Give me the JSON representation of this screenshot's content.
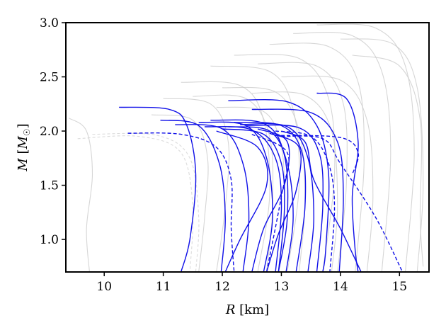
{
  "chart_data": {
    "type": "line",
    "xlabel": "R [km]",
    "ylabel": "M [M☉]",
    "xlim": [
      9.35,
      15.5
    ],
    "ylim": [
      0.7,
      3.0
    ],
    "x_ticks": [
      "10",
      "11",
      "12",
      "13",
      "14",
      "15"
    ],
    "y_ticks": [
      "1.0",
      "1.5",
      "2.0",
      "2.5",
      "3.0"
    ],
    "grid": false,
    "colors": {
      "highlight": "#1010e8",
      "background": "#c8c8c8",
      "background_dashed": "#d0d0d0",
      "axes": "#000000"
    },
    "series": [
      {
        "style": "solid",
        "color": "highlight",
        "points": [
          [
            10.25,
            2.22
          ],
          [
            11.1,
            2.2
          ],
          [
            11.4,
            2.05
          ],
          [
            11.55,
            1.6
          ],
          [
            11.45,
            1.0
          ],
          [
            11.3,
            0.7
          ]
        ]
      },
      {
        "style": "solid",
        "color": "highlight",
        "points": [
          [
            10.95,
            2.1
          ],
          [
            11.6,
            2.05
          ],
          [
            11.95,
            1.7
          ],
          [
            12.05,
            1.2
          ],
          [
            11.98,
            0.7
          ]
        ]
      },
      {
        "style": "solid",
        "color": "highlight",
        "points": [
          [
            11.2,
            2.06
          ],
          [
            12.0,
            2.02
          ],
          [
            12.35,
            1.7
          ],
          [
            12.45,
            1.2
          ],
          [
            12.35,
            0.7
          ]
        ]
      },
      {
        "style": "solid",
        "color": "highlight",
        "points": [
          [
            11.6,
            2.08
          ],
          [
            12.4,
            2.05
          ],
          [
            12.75,
            1.75
          ],
          [
            12.85,
            1.2
          ],
          [
            12.7,
            0.7
          ]
        ]
      },
      {
        "style": "solid",
        "color": "highlight",
        "points": [
          [
            11.8,
            2.1
          ],
          [
            12.7,
            2.07
          ],
          [
            13.05,
            1.78
          ],
          [
            13.1,
            1.2
          ],
          [
            12.95,
            0.7
          ]
        ]
      },
      {
        "style": "solid",
        "color": "highlight",
        "points": [
          [
            12.1,
            2.04
          ],
          [
            12.8,
            2.0
          ],
          [
            13.1,
            1.7
          ],
          [
            13.2,
            1.2
          ],
          [
            13.08,
            0.7
          ]
        ]
      },
      {
        "style": "solid",
        "color": "highlight",
        "points": [
          [
            12.2,
            2.08
          ],
          [
            13.0,
            2.05
          ],
          [
            13.35,
            1.8
          ],
          [
            13.4,
            1.3
          ],
          [
            13.25,
            0.7
          ]
        ]
      },
      {
        "style": "solid",
        "color": "highlight",
        "points": [
          [
            12.3,
            2.06
          ],
          [
            13.1,
            2.04
          ],
          [
            13.45,
            1.75
          ],
          [
            13.55,
            1.2
          ],
          [
            13.45,
            0.7
          ]
        ]
      },
      {
        "style": "solid",
        "color": "highlight",
        "points": [
          [
            12.4,
            2.05
          ],
          [
            13.3,
            2.03
          ],
          [
            13.65,
            1.78
          ],
          [
            13.7,
            1.3
          ],
          [
            13.6,
            0.7
          ]
        ]
      },
      {
        "style": "solid",
        "color": "highlight",
        "points": [
          [
            12.1,
            2.28
          ],
          [
            13.1,
            2.27
          ],
          [
            13.6,
            2.05
          ],
          [
            13.8,
            1.6
          ],
          [
            13.75,
            0.9
          ],
          [
            13.7,
            0.7
          ]
        ]
      },
      {
        "style": "solid",
        "color": "highlight",
        "points": [
          [
            12.5,
            2.2
          ],
          [
            13.5,
            2.17
          ],
          [
            13.95,
            1.9
          ],
          [
            14.05,
            1.4
          ],
          [
            13.98,
            0.7
          ]
        ]
      },
      {
        "style": "solid",
        "color": "highlight",
        "points": [
          [
            13.6,
            2.35
          ],
          [
            14.1,
            2.3
          ],
          [
            14.3,
            1.9
          ],
          [
            14.2,
            1.4
          ],
          [
            14.25,
            0.9
          ],
          [
            14.3,
            0.7
          ]
        ]
      },
      {
        "style": "solid",
        "color": "highlight",
        "points": [
          [
            12.6,
            2.02
          ],
          [
            13.1,
            1.9
          ],
          [
            13.05,
            1.5
          ],
          [
            12.7,
            1.1
          ],
          [
            12.5,
            0.7
          ]
        ]
      },
      {
        "style": "solid",
        "color": "highlight",
        "points": [
          [
            11.9,
            2.0
          ],
          [
            12.6,
            1.85
          ],
          [
            12.75,
            1.5
          ],
          [
            12.3,
            1.0
          ],
          [
            12.05,
            0.7
          ]
        ]
      },
      {
        "style": "solid",
        "color": "highlight",
        "points": [
          [
            12.8,
            1.98
          ],
          [
            13.3,
            1.85
          ],
          [
            13.25,
            1.45
          ],
          [
            12.95,
            1.05
          ],
          [
            12.75,
            0.7
          ]
        ]
      },
      {
        "style": "solid",
        "color": "highlight",
        "points": [
          [
            13.0,
            2.0
          ],
          [
            13.4,
            1.9
          ],
          [
            13.55,
            1.55
          ],
          [
            14.0,
            1.1
          ],
          [
            14.35,
            0.7
          ]
        ]
      },
      {
        "style": "solid",
        "color": "highlight",
        "points": [
          [
            12.0,
            2.02
          ],
          [
            12.7,
            1.97
          ],
          [
            13.0,
            1.7
          ],
          [
            13.05,
            1.25
          ],
          [
            12.95,
            0.7
          ]
        ]
      },
      {
        "style": "solid",
        "color": "highlight",
        "points": [
          [
            11.7,
            2.04
          ],
          [
            12.5,
            2.01
          ],
          [
            12.9,
            1.75
          ],
          [
            13.0,
            1.3
          ],
          [
            12.9,
            0.7
          ]
        ]
      },
      {
        "style": "dashed",
        "color": "highlight",
        "points": [
          [
            10.4,
            1.98
          ],
          [
            11.3,
            1.97
          ],
          [
            11.9,
            1.85
          ],
          [
            12.15,
            1.55
          ],
          [
            12.15,
            1.1
          ],
          [
            12.2,
            0.7
          ]
        ]
      },
      {
        "style": "dashed",
        "color": "highlight",
        "points": [
          [
            12.9,
            2.0
          ],
          [
            13.5,
            1.95
          ],
          [
            13.8,
            1.7
          ],
          [
            13.9,
            1.3
          ],
          [
            13.82,
            0.7
          ]
        ]
      },
      {
        "style": "dashed",
        "color": "highlight",
        "points": [
          [
            13.0,
            1.95
          ],
          [
            13.7,
            1.93
          ],
          [
            14.0,
            1.7
          ],
          [
            14.6,
            1.2
          ],
          [
            15.05,
            0.7
          ]
        ]
      },
      {
        "style": "dashed",
        "color": "highlight",
        "points": [
          [
            12.9,
            1.96
          ],
          [
            14.0,
            1.94
          ],
          [
            14.3,
            1.8
          ],
          [
            14.2,
            1.6
          ]
        ]
      },
      {
        "style": "dashed",
        "color": "highlight",
        "points": [
          [
            12.5,
            1.97
          ],
          [
            13.1,
            1.8
          ],
          [
            13.0,
            1.4
          ],
          [
            12.75,
            0.7
          ]
        ]
      },
      {
        "style": "solid",
        "color": "background",
        "points": [
          [
            9.4,
            2.12
          ],
          [
            9.7,
            2.0
          ],
          [
            9.8,
            1.6
          ],
          [
            9.7,
            1.1
          ],
          [
            9.75,
            0.7
          ]
        ]
      },
      {
        "style": "dashed",
        "color": "background",
        "points": [
          [
            9.55,
            1.93
          ],
          [
            10.6,
            1.95
          ],
          [
            11.3,
            1.8
          ],
          [
            11.5,
            1.3
          ],
          [
            11.45,
            0.7
          ]
        ]
      },
      {
        "style": "dashed",
        "color": "background",
        "points": [
          [
            9.8,
            1.97
          ],
          [
            10.9,
            1.96
          ],
          [
            11.45,
            1.75
          ],
          [
            11.6,
            1.2
          ],
          [
            11.55,
            0.7
          ]
        ]
      },
      {
        "style": "solid",
        "color": "background",
        "points": [
          [
            11.0,
            2.3
          ],
          [
            11.8,
            2.25
          ],
          [
            12.1,
            1.9
          ],
          [
            12.05,
            1.3
          ],
          [
            11.9,
            0.7
          ]
        ]
      },
      {
        "style": "solid",
        "color": "background",
        "points": [
          [
            11.3,
            2.45
          ],
          [
            12.3,
            2.42
          ],
          [
            12.7,
            2.1
          ],
          [
            12.8,
            1.4
          ],
          [
            12.6,
            0.7
          ]
        ]
      },
      {
        "style": "solid",
        "color": "background",
        "points": [
          [
            11.8,
            2.6
          ],
          [
            12.8,
            2.55
          ],
          [
            13.2,
            2.2
          ],
          [
            13.3,
            1.5
          ],
          [
            13.1,
            0.7
          ]
        ]
      },
      {
        "style": "solid",
        "color": "background",
        "points": [
          [
            12.2,
            2.7
          ],
          [
            13.3,
            2.67
          ],
          [
            13.8,
            2.3
          ],
          [
            13.9,
            1.6
          ],
          [
            13.7,
            0.7
          ]
        ]
      },
      {
        "style": "solid",
        "color": "background",
        "points": [
          [
            12.8,
            2.8
          ],
          [
            13.8,
            2.78
          ],
          [
            14.3,
            2.45
          ],
          [
            14.4,
            1.7
          ],
          [
            14.25,
            0.7
          ]
        ]
      },
      {
        "style": "solid",
        "color": "background",
        "points": [
          [
            13.2,
            2.9
          ],
          [
            14.2,
            2.88
          ],
          [
            14.7,
            2.55
          ],
          [
            14.85,
            1.8
          ],
          [
            14.7,
            0.7
          ]
        ]
      },
      {
        "style": "solid",
        "color": "background",
        "points": [
          [
            13.6,
            2.98
          ],
          [
            14.6,
            2.95
          ],
          [
            15.1,
            2.6
          ],
          [
            15.25,
            1.8
          ],
          [
            15.1,
            0.7
          ]
        ]
      },
      {
        "style": "solid",
        "color": "background",
        "points": [
          [
            14.0,
            2.85
          ],
          [
            14.9,
            2.8
          ],
          [
            15.3,
            2.4
          ],
          [
            15.4,
            1.5
          ],
          [
            15.3,
            0.7
          ]
        ]
      },
      {
        "style": "solid",
        "color": "background",
        "points": [
          [
            12.5,
            2.35
          ],
          [
            13.4,
            2.33
          ],
          [
            13.85,
            2.0
          ],
          [
            13.95,
            1.3
          ],
          [
            13.85,
            0.7
          ]
        ]
      },
      {
        "style": "solid",
        "color": "background",
        "points": [
          [
            11.9,
            2.22
          ],
          [
            12.7,
            2.18
          ],
          [
            13.0,
            1.85
          ],
          [
            13.05,
            1.3
          ],
          [
            12.95,
            0.7
          ]
        ]
      },
      {
        "style": "solid",
        "color": "background",
        "points": [
          [
            13.0,
            2.5
          ],
          [
            14.0,
            2.47
          ],
          [
            14.45,
            2.1
          ],
          [
            14.55,
            1.4
          ],
          [
            14.45,
            0.7
          ]
        ]
      },
      {
        "style": "solid",
        "color": "background",
        "points": [
          [
            10.8,
            2.15
          ],
          [
            11.5,
            2.1
          ],
          [
            11.75,
            1.75
          ],
          [
            11.7,
            1.2
          ],
          [
            11.6,
            0.7
          ]
        ]
      },
      {
        "style": "solid",
        "color": "background",
        "points": [
          [
            12.6,
            2.62
          ],
          [
            13.6,
            2.6
          ],
          [
            14.05,
            2.25
          ],
          [
            14.1,
            1.5
          ],
          [
            13.95,
            0.7
          ]
        ]
      },
      {
        "style": "solid",
        "color": "background",
        "points": [
          [
            14.2,
            2.7
          ],
          [
            15.0,
            2.6
          ],
          [
            15.35,
            2.1
          ],
          [
            15.35,
            1.2
          ],
          [
            15.4,
            0.75
          ]
        ]
      },
      {
        "style": "solid",
        "color": "background",
        "points": [
          [
            12.0,
            2.4
          ],
          [
            12.9,
            2.36
          ],
          [
            13.3,
            2.0
          ],
          [
            13.4,
            1.35
          ],
          [
            13.3,
            0.7
          ]
        ]
      },
      {
        "style": "solid",
        "color": "background",
        "points": [
          [
            11.5,
            2.32
          ],
          [
            12.4,
            2.3
          ],
          [
            12.8,
            1.95
          ],
          [
            12.85,
            1.3
          ],
          [
            12.75,
            0.7
          ]
        ]
      }
    ]
  }
}
